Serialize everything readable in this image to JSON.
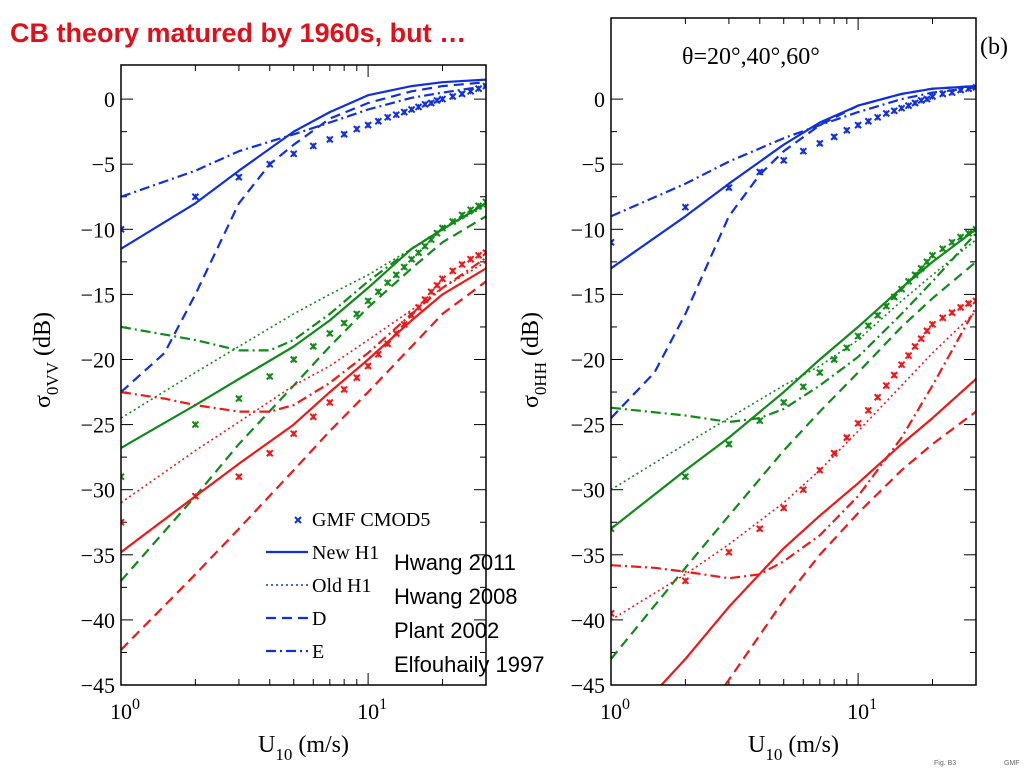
{
  "slide": {
    "title": "CB theory matured by 1960s, but …",
    "annotations": [
      "Hwang 2011",
      "Hwang 2008",
      "Plant 2002",
      "Elfouhaily 1997"
    ],
    "footer": [
      "Fig. B3",
      "GMF"
    ]
  },
  "colors": {
    "blue": "#1030e0",
    "green": "#108a18",
    "red": "#ee1818"
  },
  "chart_data": [
    {
      "type": "line",
      "panel_label": "",
      "annotation": "",
      "xlabel": "U10 (m/s)",
      "xlabel_main": "U",
      "xlabel_sub": "10",
      "xlabel_unit": " (m/s)",
      "ylabel": "σ0VV (dB)",
      "ylabel_main": "σ",
      "ylabel_sub": "0VV",
      "ylabel_unit": " (dB)",
      "x_scale": "log",
      "xlim": [
        1,
        30
      ],
      "ylim": [
        -45,
        2
      ],
      "yticks": [
        0,
        -5,
        -10,
        -15,
        -20,
        -25,
        -30,
        -35,
        -40,
        -45
      ],
      "ytick_labels": [
        "0",
        "−5",
        "−10",
        "−15",
        "−20",
        "−25",
        "−30",
        "−35",
        "−40",
        "−45"
      ],
      "xticks": [
        1,
        10
      ],
      "xtick_labels": [
        {
          "base": "10",
          "exp": "0"
        },
        {
          "base": "10",
          "exp": "1"
        }
      ],
      "legend": {
        "placement": "bottom-left",
        "entries": [
          {
            "label": "GMF CMOD5",
            "style": "marker"
          },
          {
            "label": "New H1",
            "style": "solid"
          },
          {
            "label": "Old H1",
            "style": "dotted"
          },
          {
            "label": "D",
            "style": "dashed"
          },
          {
            "label": "E",
            "style": "dashdot"
          }
        ]
      },
      "series": [
        {
          "color": "blue",
          "style": "solid",
          "x": [
            1,
            2,
            3,
            5,
            7,
            10,
            15,
            20,
            30
          ],
          "y": [
            -11.5,
            -8,
            -5.5,
            -2.5,
            -1,
            0.3,
            1,
            1.3,
            1.5
          ]
        },
        {
          "color": "blue",
          "style": "dashed",
          "x": [
            1,
            1.5,
            2,
            3,
            4,
            5,
            7,
            10,
            15,
            20,
            30
          ],
          "y": [
            -22.5,
            -19.5,
            -15,
            -8,
            -5,
            -3.5,
            -1.5,
            -0.3,
            0.6,
            1,
            1.3
          ]
        },
        {
          "color": "blue",
          "style": "dashdot",
          "x": [
            1,
            2,
            3,
            5,
            7,
            10,
            15,
            20,
            30
          ],
          "y": [
            -7.5,
            -5.5,
            -4,
            -2.7,
            -1.8,
            -0.8,
            0.1,
            0.5,
            1
          ]
        },
        {
          "color": "blue",
          "style": "marker",
          "x": [
            1,
            2,
            3,
            4,
            5,
            6,
            7,
            8,
            9,
            10,
            11,
            12,
            13,
            14,
            15,
            16,
            17,
            18,
            19,
            20,
            22,
            24,
            26,
            28,
            30
          ],
          "y": [
            -10,
            -7.5,
            -6,
            -5,
            -4.2,
            -3.6,
            -3.1,
            -2.7,
            -2.3,
            -2,
            -1.7,
            -1.4,
            -1.2,
            -1,
            -0.8,
            -0.6,
            -0.4,
            -0.3,
            -0.1,
            0,
            0.2,
            0.4,
            0.6,
            0.8,
            1
          ]
        },
        {
          "color": "green",
          "style": "solid",
          "x": [
            1,
            2,
            3,
            5,
            7,
            10,
            15,
            20,
            30
          ],
          "y": [
            -26.8,
            -23.5,
            -21.5,
            -19,
            -17,
            -14.5,
            -11.5,
            -10,
            -8
          ]
        },
        {
          "color": "green",
          "style": "dotted",
          "x": [
            1,
            2,
            3,
            5,
            7,
            10,
            15,
            20,
            30
          ],
          "y": [
            -24.5,
            -21,
            -19,
            -16.5,
            -15,
            -13.5,
            -11.5,
            -10,
            -8.2
          ]
        },
        {
          "color": "green",
          "style": "dashed",
          "x": [
            1,
            2,
            3,
            5,
            7,
            10,
            15,
            20,
            30
          ],
          "y": [
            -37,
            -30.5,
            -26.5,
            -22,
            -19,
            -16,
            -13,
            -11,
            -9
          ]
        },
        {
          "color": "green",
          "style": "dashdot",
          "x": [
            1,
            2,
            3,
            4,
            5,
            7,
            10,
            15,
            20,
            30
          ],
          "y": [
            -17.5,
            -18.5,
            -19.3,
            -19.3,
            -18.5,
            -16.5,
            -14,
            -11.5,
            -10,
            -8
          ]
        },
        {
          "color": "green",
          "style": "marker",
          "x": [
            1,
            2,
            3,
            4,
            5,
            6,
            7,
            8,
            9,
            10,
            11,
            12,
            13,
            14,
            15,
            16,
            17,
            18,
            19,
            20,
            22,
            24,
            26,
            28,
            30
          ],
          "y": [
            -29,
            -25,
            -23,
            -21.3,
            -20,
            -19,
            -18,
            -17.2,
            -16.5,
            -15.5,
            -14.8,
            -14.1,
            -13.5,
            -12.9,
            -12.3,
            -11.8,
            -11.3,
            -10.8,
            -10.3,
            -9.9,
            -9.4,
            -8.9,
            -8.5,
            -8.2,
            -7.9
          ]
        },
        {
          "color": "red",
          "style": "solid",
          "x": [
            1,
            2,
            3,
            5,
            7,
            10,
            15,
            20,
            30
          ],
          "y": [
            -34.8,
            -30.5,
            -28,
            -25,
            -22.5,
            -20,
            -17,
            -15,
            -13
          ]
        },
        {
          "color": "red",
          "style": "dotted",
          "x": [
            1,
            2,
            3,
            5,
            7,
            10,
            15,
            20,
            30
          ],
          "y": [
            -31,
            -27,
            -24.8,
            -22,
            -20.5,
            -18.5,
            -16.2,
            -14.5,
            -12.5
          ]
        },
        {
          "color": "red",
          "style": "dashed",
          "x": [
            1,
            2,
            3,
            5,
            7,
            10,
            15,
            20,
            30
          ],
          "y": [
            -42.3,
            -36.5,
            -33,
            -28.5,
            -25.5,
            -22.5,
            -19,
            -16.5,
            -14
          ]
        },
        {
          "color": "red",
          "style": "dashdot",
          "x": [
            1,
            1.5,
            2,
            3,
            4,
            5,
            7,
            10,
            15,
            20,
            30
          ],
          "y": [
            -22.5,
            -23,
            -23.5,
            -24,
            -24,
            -23.5,
            -21.8,
            -19.5,
            -16.5,
            -14.5,
            -12.2
          ]
        },
        {
          "color": "red",
          "style": "marker",
          "x": [
            1,
            2,
            3,
            4,
            5,
            6,
            7,
            8,
            9,
            10,
            11,
            12,
            13,
            14,
            15,
            16,
            17,
            18,
            19,
            20,
            22,
            24,
            26,
            28,
            30
          ],
          "y": [
            -32.5,
            -30.5,
            -29,
            -27.2,
            -25.7,
            -24.4,
            -23.3,
            -22.3,
            -21.4,
            -20.5,
            -19.6,
            -18.8,
            -18,
            -17.3,
            -16.6,
            -16,
            -15.4,
            -14.8,
            -14.3,
            -13.8,
            -13.2,
            -12.7,
            -12.3,
            -12,
            -11.8
          ]
        }
      ]
    },
    {
      "type": "line",
      "panel_label": "(b)",
      "annotation": "θ=20°,40°,60°",
      "xlabel": "U10 (m/s)",
      "xlabel_main": "U",
      "xlabel_sub": "10",
      "xlabel_unit": " (m/s)",
      "ylabel": "σ0HH (dB)",
      "ylabel_main": "σ",
      "ylabel_sub": "0HH",
      "ylabel_unit": " (dB)",
      "x_scale": "log",
      "xlim": [
        1,
        30
      ],
      "ylim": [
        -45,
        2
      ],
      "yticks": [
        0,
        -5,
        -10,
        -15,
        -20,
        -25,
        -30,
        -35,
        -40,
        -45
      ],
      "ytick_labels": [
        "0",
        "−5",
        "−10",
        "−15",
        "−20",
        "−25",
        "−30",
        "−35",
        "−40",
        "−45"
      ],
      "xticks": [
        1,
        10
      ],
      "xtick_labels": [
        {
          "base": "10",
          "exp": "0"
        },
        {
          "base": "10",
          "exp": "1"
        }
      ],
      "series": [
        {
          "color": "blue",
          "style": "solid",
          "x": [
            1,
            2,
            3,
            5,
            7,
            10,
            15,
            20,
            30
          ],
          "y": [
            -13,
            -9,
            -6.5,
            -3.5,
            -1.8,
            -0.5,
            0.4,
            0.8,
            1
          ]
        },
        {
          "color": "blue",
          "style": "dashed",
          "x": [
            1,
            1.5,
            2,
            3,
            4,
            5,
            7,
            10,
            15,
            20,
            30
          ],
          "y": [
            -24.5,
            -21,
            -16.5,
            -9,
            -5.8,
            -4,
            -2,
            -0.5,
            0.4,
            0.8,
            1
          ]
        },
        {
          "color": "blue",
          "style": "dashdot",
          "x": [
            1,
            2,
            3,
            5,
            7,
            10,
            15,
            20,
            30
          ],
          "y": [
            -9,
            -6.5,
            -4.8,
            -3,
            -2,
            -1,
            0,
            0.5,
            0.9
          ]
        },
        {
          "color": "blue",
          "style": "marker",
          "x": [
            1,
            2,
            3,
            4,
            5,
            6,
            7,
            8,
            9,
            10,
            11,
            12,
            13,
            14,
            15,
            16,
            17,
            18,
            19,
            20,
            22,
            24,
            26,
            28,
            30
          ],
          "y": [
            -11,
            -8.3,
            -6.8,
            -5.6,
            -4.7,
            -4,
            -3.4,
            -2.9,
            -2.4,
            -2,
            -1.7,
            -1.4,
            -1.1,
            -0.9,
            -0.7,
            -0.5,
            -0.3,
            -0.1,
            0,
            0.2,
            0.4,
            0.5,
            0.7,
            0.8,
            0.9
          ]
        },
        {
          "color": "green",
          "style": "solid",
          "x": [
            1,
            2,
            3,
            5,
            7,
            10,
            15,
            20,
            30
          ],
          "y": [
            -33,
            -28.5,
            -26,
            -22.5,
            -20,
            -17.5,
            -14.5,
            -12.5,
            -10
          ]
        },
        {
          "color": "green",
          "style": "dotted",
          "x": [
            1,
            2,
            3,
            5,
            7,
            10,
            15,
            20,
            30
          ],
          "y": [
            -30,
            -26.5,
            -24.5,
            -22,
            -20.5,
            -18.5,
            -15.5,
            -13.5,
            -10.8
          ]
        },
        {
          "color": "green",
          "style": "dashed",
          "x": [
            1,
            2,
            3,
            5,
            7,
            10,
            15,
            20,
            30
          ],
          "y": [
            -43,
            -36,
            -32,
            -27,
            -24,
            -21,
            -17.5,
            -15.3,
            -12.5
          ]
        },
        {
          "color": "green",
          "style": "dashdot",
          "x": [
            1,
            2,
            3,
            4,
            5,
            7,
            10,
            15,
            20,
            30
          ],
          "y": [
            -23.7,
            -24.3,
            -24.8,
            -24.5,
            -23.8,
            -22,
            -19.8,
            -16.5,
            -14,
            -10.3
          ]
        },
        {
          "color": "green",
          "style": "marker",
          "x": [
            1,
            2,
            3,
            4,
            5,
            6,
            7,
            8,
            9,
            10,
            11,
            12,
            13,
            14,
            15,
            16,
            17,
            18,
            19,
            20,
            22,
            24,
            26,
            28,
            30
          ],
          "y": [
            -33,
            -29,
            -26.5,
            -24.7,
            -23.3,
            -22.1,
            -21,
            -20,
            -19.1,
            -18.2,
            -17.4,
            -16.6,
            -15.9,
            -15.2,
            -14.6,
            -14,
            -13.5,
            -13,
            -12.5,
            -12,
            -11.5,
            -11,
            -10.6,
            -10.3,
            -10
          ]
        },
        {
          "color": "red",
          "style": "solid",
          "x": [
            1.6,
            2,
            3,
            5,
            7,
            10,
            15,
            20,
            30
          ],
          "y": [
            -45,
            -43,
            -39,
            -34.5,
            -32,
            -29.5,
            -26.5,
            -24.5,
            -21.5
          ]
        },
        {
          "color": "red",
          "style": "dotted",
          "x": [
            1,
            2,
            3,
            5,
            7,
            10,
            15,
            20,
            30
          ],
          "y": [
            -40,
            -36.5,
            -34.2,
            -31,
            -28.5,
            -25.5,
            -22,
            -19.5,
            -16.3
          ]
        },
        {
          "color": "red",
          "style": "dashed",
          "x": [
            2.9,
            3,
            5,
            7,
            10,
            15,
            20,
            30
          ],
          "y": [
            -45,
            -44.6,
            -38.5,
            -35,
            -31.8,
            -28.5,
            -26.5,
            -24
          ]
        },
        {
          "color": "red",
          "style": "dashdot",
          "x": [
            1,
            1.5,
            2,
            3,
            4,
            5,
            7,
            10,
            15,
            20,
            30
          ],
          "y": [
            -35.8,
            -36,
            -36.3,
            -36.8,
            -36.5,
            -35.5,
            -33.5,
            -30.5,
            -26,
            -22,
            -16
          ]
        },
        {
          "color": "red",
          "style": "marker",
          "x": [
            1,
            2,
            3,
            4,
            5,
            6,
            7,
            8,
            9,
            10,
            11,
            12,
            13,
            14,
            15,
            16,
            17,
            18,
            19,
            20,
            22,
            24,
            26,
            28,
            30
          ],
          "y": [
            -39.5,
            -37,
            -34.8,
            -33,
            -31.4,
            -30,
            -28.5,
            -27.2,
            -26,
            -24.9,
            -23.9,
            -22.9,
            -22,
            -21.2,
            -20.4,
            -19.7,
            -19,
            -18.4,
            -17.8,
            -17.3,
            -16.8,
            -16.4,
            -16,
            -15.7,
            -15.5
          ]
        }
      ]
    }
  ]
}
